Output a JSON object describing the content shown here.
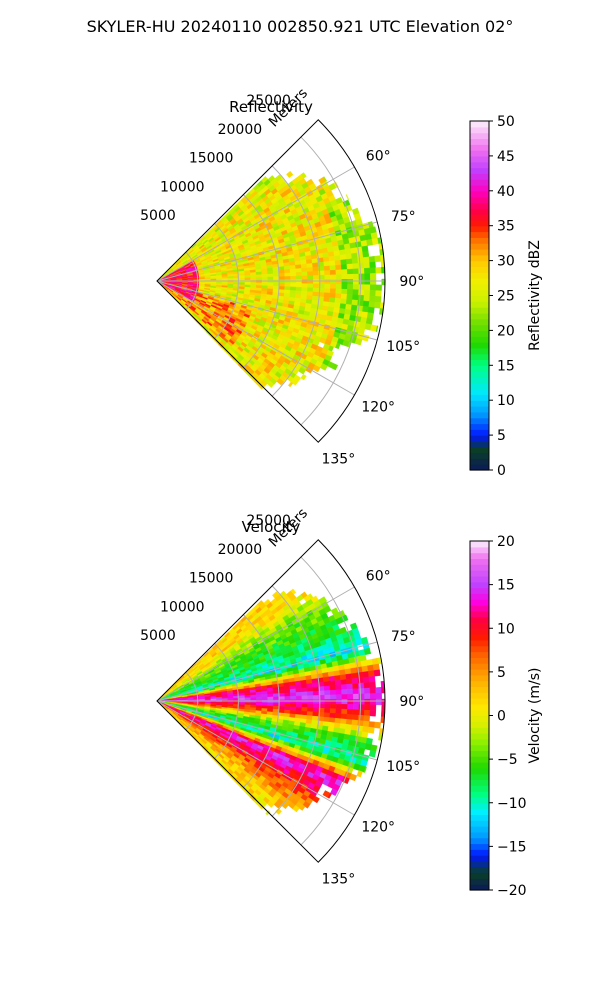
{
  "figure": {
    "title": "SKYLER-HU  20240110  002850.921 UTC Elevation 02°"
  },
  "chart_data": [
    {
      "type": "heatmap",
      "projection": "polar-sector",
      "title": "Reflectivity",
      "radial_label": "Meters",
      "range_ticks": [
        5000,
        10000,
        15000,
        20000,
        25000
      ],
      "range_tick_labels": [
        "5000",
        "10000",
        "15000",
        "20000",
        "25000"
      ],
      "rmax": 28000,
      "azimuth_range_deg": [
        45,
        135
      ],
      "azimuth_ticks": [
        60,
        75,
        90,
        105,
        120,
        135
      ],
      "azimuth_tick_labels": [
        "60°",
        "75°",
        "90°",
        "105°",
        "120°",
        "135°"
      ],
      "grid": true,
      "colorbar": {
        "label": "Reflectivity dBZ",
        "min": 0,
        "max": 50,
        "ticks": [
          0,
          5,
          10,
          15,
          20,
          25,
          30,
          35,
          40,
          45,
          50
        ],
        "tick_labels": [
          "0",
          "5",
          "10",
          "15",
          "20",
          "25",
          "30",
          "35",
          "40",
          "45",
          "50"
        ],
        "colormap": [
          [
            0,
            "#0b1a5a"
          ],
          [
            3,
            "#0a3f24"
          ],
          [
            5,
            "#0018ff"
          ],
          [
            8,
            "#0098ff"
          ],
          [
            11,
            "#00e8ff"
          ],
          [
            15,
            "#00ff80"
          ],
          [
            18,
            "#20d800"
          ],
          [
            21,
            "#6ee000"
          ],
          [
            24,
            "#c8f000"
          ],
          [
            27,
            "#f0f000"
          ],
          [
            30,
            "#ffc800"
          ],
          [
            33,
            "#ff7000"
          ],
          [
            35,
            "#ff1a00"
          ],
          [
            37,
            "#ff0040"
          ],
          [
            40,
            "#ff00c0"
          ],
          [
            43,
            "#c040ff"
          ],
          [
            46,
            "#f070f0"
          ],
          [
            50,
            "#fdf0fd"
          ]
        ]
      },
      "field_description": [
        {
          "range_m": [
            0,
            4500
          ],
          "azimuth_deg": [
            60,
            120
          ],
          "value_dbz": 37
        },
        {
          "range_m": [
            0,
            12000
          ],
          "azimuth_deg": [
            105,
            130
          ],
          "value_dbz": 32
        },
        {
          "range_m": [
            0,
            22000
          ],
          "azimuth_deg": [
            50,
            135
          ],
          "value_dbz": 27
        },
        {
          "range_m": [
            22000,
            28000
          ],
          "azimuth_deg": [
            65,
            115
          ],
          "value_dbz": 23
        }
      ],
      "echo_extent_m": [
        [
          46,
          19500
        ],
        [
          50,
          21000
        ],
        [
          55,
          23000
        ],
        [
          60,
          25000
        ],
        [
          65,
          25500
        ],
        [
          70,
          26500
        ],
        [
          75,
          27500
        ],
        [
          80,
          28000
        ],
        [
          90,
          28000
        ],
        [
          100,
          28000
        ],
        [
          105,
          27000
        ],
        [
          110,
          23000
        ],
        [
          115,
          24500
        ],
        [
          120,
          22000
        ],
        [
          125,
          21500
        ],
        [
          130,
          20000
        ],
        [
          134,
          19000
        ]
      ]
    },
    {
      "type": "heatmap",
      "projection": "polar-sector",
      "title": "Velocity",
      "radial_label": "Meters",
      "range_ticks": [
        5000,
        10000,
        15000,
        20000,
        25000
      ],
      "range_tick_labels": [
        "5000",
        "10000",
        "15000",
        "20000",
        "25000"
      ],
      "rmax": 28000,
      "azimuth_range_deg": [
        45,
        135
      ],
      "azimuth_ticks": [
        60,
        75,
        90,
        105,
        120,
        135
      ],
      "azimuth_tick_labels": [
        "60°",
        "75°",
        "90°",
        "105°",
        "120°",
        "135°"
      ],
      "grid": true,
      "colorbar": {
        "label": "Velocity (m/s)",
        "min": -20,
        "max": 20,
        "ticks": [
          -20,
          -15,
          -10,
          -5,
          0,
          5,
          10,
          15,
          20
        ],
        "tick_labels": [
          "−20",
          "−15",
          "−10",
          "−5",
          "0",
          "5",
          "10",
          "15",
          "20"
        ],
        "colormap": [
          [
            -20,
            "#0b1a5a"
          ],
          [
            -18,
            "#0a3f24"
          ],
          [
            -16,
            "#0018ff"
          ],
          [
            -14,
            "#0098ff"
          ],
          [
            -11,
            "#00f0ff"
          ],
          [
            -9,
            "#00ff80"
          ],
          [
            -6,
            "#20d800"
          ],
          [
            -3,
            "#90f000"
          ],
          [
            -1,
            "#d8f000"
          ],
          [
            1,
            "#ffe800"
          ],
          [
            4,
            "#ffb000"
          ],
          [
            7,
            "#ff6000"
          ],
          [
            9,
            "#ff1a00"
          ],
          [
            11,
            "#ff0040"
          ],
          [
            13,
            "#ff00e0"
          ],
          [
            15,
            "#c040ff"
          ],
          [
            18,
            "#f070f0"
          ],
          [
            20,
            "#fdf0fd"
          ]
        ]
      },
      "field_description": [
        {
          "azimuth_deg": 52,
          "value_ms": 2
        },
        {
          "azimuth_deg": 60,
          "value_ms": -4
        },
        {
          "azimuth_deg": 68,
          "value_ms": -7
        },
        {
          "azimuth_deg": 75,
          "value_ms": -11
        },
        {
          "azimuth_deg": 82,
          "value_ms": 10
        },
        {
          "azimuth_deg": 88,
          "value_ms": 15
        },
        {
          "azimuth_deg": 94,
          "value_ms": 8
        },
        {
          "azimuth_deg": 100,
          "value_ms": -5
        },
        {
          "azimuth_deg": 106,
          "value_ms": -10
        },
        {
          "azimuth_deg": 113,
          "value_ms": 14
        },
        {
          "azimuth_deg": 120,
          "value_ms": 9
        },
        {
          "azimuth_deg": 127,
          "value_ms": 4
        },
        {
          "azimuth_deg": 134,
          "value_ms": 1
        }
      ],
      "echo_extent_m": [
        [
          46,
          19500
        ],
        [
          50,
          21500
        ],
        [
          55,
          23000
        ],
        [
          60,
          25000
        ],
        [
          65,
          25500
        ],
        [
          70,
          26500
        ],
        [
          75,
          27500
        ],
        [
          80,
          28000
        ],
        [
          90,
          28000
        ],
        [
          100,
          28000
        ],
        [
          105,
          27500
        ],
        [
          110,
          26500
        ],
        [
          115,
          25500
        ],
        [
          120,
          23500
        ],
        [
          125,
          22500
        ],
        [
          130,
          21000
        ],
        [
          134,
          19500
        ]
      ]
    }
  ]
}
